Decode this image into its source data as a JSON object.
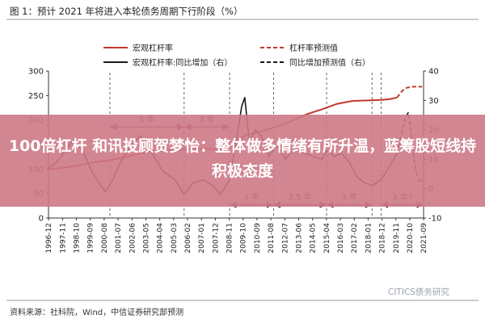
{
  "figure": {
    "title": "图 1：预计 2021 年将进入本轮债务周期下行阶段（%）",
    "source": "资料来源：社科院，Wind，中信证券研究部预测",
    "watermark": "CITICS债务研究"
  },
  "banner": {
    "text": "100倍杠杆 和讯投顾贺梦怡：整体做多情绪有所升温，蓝筹股短线持积极态度"
  },
  "colors": {
    "leverage": "#c0392b",
    "yoy": "#1a1a1a",
    "banner_bg": "#cd7986",
    "arrow": "#7b2d5c"
  },
  "chart_data": {
    "type": "line",
    "title": "",
    "x": [
      "1996-12",
      "1997-11",
      "1998-10",
      "1999-09",
      "2000-08",
      "2001-07",
      "2002-06",
      "2003-05",
      "2004-04",
      "2005-03",
      "2006-02",
      "2007-01",
      "2007-12",
      "2008-11",
      "2009-10",
      "2010-09",
      "2011-08",
      "2012-07",
      "2013-06",
      "2014-05",
      "2015-04",
      "2016-03",
      "2017-02",
      "2018-01",
      "2018-12",
      "2019-11",
      "2020-10",
      "2021-09"
    ],
    "x_range": [
      1996.95,
      2021.7
    ],
    "ylim_left": [
      0,
      300
    ],
    "yticks_left": [
      0,
      50,
      100,
      150,
      200,
      250,
      300
    ],
    "ylim_right": [
      -10,
      40
    ],
    "yticks_right": [
      -10,
      0,
      10,
      20,
      30,
      40
    ],
    "grid": false,
    "legend_position": "top",
    "series": [
      {
        "name": "宏观杠杆率",
        "axis": "left",
        "style": "solid",
        "color_key": "leverage",
        "points": [
          [
            1996.95,
            99
          ],
          [
            1998.0,
            103
          ],
          [
            1999.0,
            108
          ],
          [
            2000.0,
            114
          ],
          [
            2001.0,
            118
          ],
          [
            2002.0,
            124
          ],
          [
            2003.0,
            132
          ],
          [
            2004.0,
            137
          ],
          [
            2005.0,
            138
          ],
          [
            2006.0,
            140
          ],
          [
            2007.0,
            141
          ],
          [
            2008.0,
            141
          ],
          [
            2008.9,
            143
          ],
          [
            2009.5,
            160
          ],
          [
            2010.0,
            170
          ],
          [
            2011.0,
            177
          ],
          [
            2012.0,
            186
          ],
          [
            2013.0,
            198
          ],
          [
            2014.0,
            212
          ],
          [
            2015.0,
            222
          ],
          [
            2016.0,
            233
          ],
          [
            2017.0,
            239
          ],
          [
            2018.0,
            240
          ],
          [
            2018.9,
            241
          ],
          [
            2019.5,
            243
          ],
          [
            2019.95,
            246
          ]
        ]
      },
      {
        "name": "杠杆率预测值",
        "axis": "left",
        "style": "dashed",
        "color_key": "leverage",
        "points": [
          [
            2019.95,
            246
          ],
          [
            2020.3,
            260
          ],
          [
            2020.6,
            266
          ],
          [
            2021.0,
            268
          ],
          [
            2021.6,
            268
          ]
        ]
      },
      {
        "name": "宏观杠杆率:同比增加（右）",
        "axis": "right",
        "style": "solid",
        "color_key": "yoy",
        "points": [
          [
            1996.95,
            7
          ],
          [
            1997.5,
            9
          ],
          [
            1998.5,
            16
          ],
          [
            1999.2,
            13
          ],
          [
            1999.8,
            6
          ],
          [
            2000.4,
            1
          ],
          [
            2000.7,
            -1
          ],
          [
            2001.2,
            3
          ],
          [
            2001.7,
            9
          ],
          [
            2002.3,
            14
          ],
          [
            2003.0,
            18
          ],
          [
            2003.8,
            12
          ],
          [
            2004.5,
            6
          ],
          [
            2005.3,
            3
          ],
          [
            2005.9,
            -2
          ],
          [
            2006.5,
            2
          ],
          [
            2007.2,
            3
          ],
          [
            2007.8,
            1
          ],
          [
            2008.3,
            -2
          ],
          [
            2008.9,
            3
          ],
          [
            2009.3,
            15
          ],
          [
            2009.7,
            28
          ],
          [
            2009.9,
            31
          ],
          [
            2010.2,
            16
          ],
          [
            2010.6,
            20
          ],
          [
            2011.0,
            18
          ],
          [
            2011.5,
            11
          ],
          [
            2012.0,
            15
          ],
          [
            2012.6,
            10
          ],
          [
            2013.2,
            14
          ],
          [
            2013.8,
            12
          ],
          [
            2014.4,
            11
          ],
          [
            2015.0,
            10
          ],
          [
            2015.3,
            13
          ],
          [
            2015.8,
            11
          ],
          [
            2016.3,
            12
          ],
          [
            2016.8,
            9
          ],
          [
            2017.3,
            4
          ],
          [
            2017.8,
            2
          ],
          [
            2018.3,
            1
          ],
          [
            2018.9,
            3
          ],
          [
            2019.5,
            8
          ],
          [
            2019.95,
            12
          ]
        ]
      },
      {
        "name": "同比增加预测值（右）",
        "axis": "right",
        "style": "dashed",
        "color_key": "yoy",
        "points": [
          [
            2019.95,
            12
          ],
          [
            2020.25,
            19
          ],
          [
            2020.5,
            24
          ],
          [
            2020.7,
            26
          ],
          [
            2020.95,
            15
          ],
          [
            2021.2,
            6
          ],
          [
            2021.45,
            2
          ],
          [
            2021.65,
            3
          ]
        ]
      }
    ],
    "annotations": [
      {
        "label": "5 年",
        "from": 2001.0,
        "to": 2005.9,
        "y_right": 21
      },
      {
        "label": "3 年",
        "from": 2005.9,
        "to": 2008.9,
        "y_right": 21
      },
      {
        "label": "3 年",
        "from": 2008.9,
        "to": 2011.8,
        "y_right": -5.5
      },
      {
        "label": "3.5 年",
        "from": 2011.8,
        "to": 2015.3,
        "y_right": -5.5
      },
      {
        "label": "3 年",
        "from": 2015.3,
        "to": 2018.3,
        "y_right": -5.5
      },
      {
        "label": "3 年?",
        "from": 2018.9,
        "to": 2021.7,
        "y_right": -5.5
      }
    ],
    "cycle_lines": [
      2001.0,
      2005.9,
      2008.9,
      2011.8,
      2015.3,
      2018.3,
      2018.9
    ]
  }
}
